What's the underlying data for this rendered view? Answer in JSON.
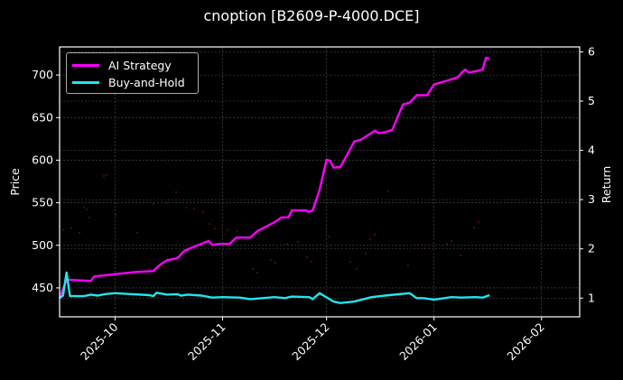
{
  "chart_data": {
    "type": "line",
    "title": "cnoption [B2609-P-4000.DCE]",
    "xlabel": "",
    "ylabel_left": "Price",
    "ylabel_right": "Return",
    "ylim_left": [
      416,
      733
    ],
    "ylim_right": [
      0.62,
      6.1
    ],
    "xlim": [
      "2025-09-15",
      "2026-02-12"
    ],
    "x_ticks": [
      "2025-10",
      "2025-11",
      "2025-12",
      "2026-01",
      "2026-02"
    ],
    "y_ticks_left": [
      450,
      500,
      550,
      600,
      650,
      700
    ],
    "y_ticks_right": [
      1,
      2,
      3,
      4,
      5,
      6
    ],
    "grid": true,
    "legend_position": "upper left",
    "series": [
      {
        "name": "AI Strategy",
        "color": "#ff00ff",
        "axis": "right",
        "x": [
          "2025-09-15",
          "2025-09-17",
          "2025-09-18",
          "2025-09-24",
          "2025-09-25",
          "2025-10-07",
          "2025-10-12",
          "2025-10-14",
          "2025-10-16",
          "2025-10-19",
          "2025-10-21",
          "2025-10-24",
          "2025-10-28",
          "2025-10-29",
          "2025-10-31",
          "2025-11-03",
          "2025-11-05",
          "2025-11-09",
          "2025-11-11",
          "2025-11-16",
          "2025-11-18",
          "2025-11-20",
          "2025-11-21",
          "2025-11-25",
          "2025-11-26",
          "2025-11-27",
          "2025-11-29",
          "2025-12-01",
          "2025-12-02",
          "2025-12-03",
          "2025-12-05",
          "2025-12-09",
          "2025-12-11",
          "2025-12-15",
          "2025-12-16",
          "2025-12-18",
          "2025-12-20",
          "2025-12-23",
          "2025-12-25",
          "2025-12-27",
          "2025-12-30",
          "2026-01-01",
          "2026-01-05",
          "2026-01-08",
          "2026-01-09",
          "2026-01-10",
          "2026-01-11",
          "2026-01-14",
          "2026-01-15",
          "2026-01-16",
          "2026-01-17"
        ],
        "values": [
          1.0,
          1.37,
          1.37,
          1.35,
          1.44,
          1.53,
          1.55,
          1.68,
          1.77,
          1.81,
          1.96,
          2.05,
          2.16,
          2.08,
          2.1,
          2.1,
          2.23,
          2.23,
          2.36,
          2.54,
          2.64,
          2.64,
          2.78,
          2.78,
          2.75,
          2.78,
          3.2,
          3.81,
          3.79,
          3.65,
          3.66,
          4.18,
          4.22,
          4.4,
          4.35,
          4.37,
          4.42,
          4.93,
          4.97,
          5.12,
          5.12,
          5.34,
          5.42,
          5.49,
          5.58,
          5.64,
          5.58,
          5.62,
          5.64,
          5.88,
          5.86
        ]
      },
      {
        "name": "Buy-and-Hold",
        "color": "#22e5ee",
        "axis": "right",
        "x": [
          "2025-09-15",
          "2025-09-16",
          "2025-09-17",
          "2025-09-18",
          "2025-09-22",
          "2025-09-24",
          "2025-09-26",
          "2025-09-28",
          "2025-10-01",
          "2025-10-06",
          "2025-10-11",
          "2025-10-12",
          "2025-10-13",
          "2025-10-16",
          "2025-10-19",
          "2025-10-20",
          "2025-10-22",
          "2025-10-26",
          "2025-10-29",
          "2025-11-01",
          "2025-11-06",
          "2025-11-09",
          "2025-11-11",
          "2025-11-16",
          "2025-11-19",
          "2025-11-21",
          "2025-11-26",
          "2025-11-27",
          "2025-11-29",
          "2025-12-03",
          "2025-12-05",
          "2025-12-09",
          "2025-12-14",
          "2025-12-19",
          "2025-12-25",
          "2025-12-27",
          "2025-12-29",
          "2026-01-01",
          "2026-01-06",
          "2026-01-09",
          "2026-01-13",
          "2026-01-15",
          "2026-01-17"
        ],
        "values": [
          1.0,
          1.05,
          1.52,
          1.04,
          1.04,
          1.07,
          1.05,
          1.08,
          1.1,
          1.08,
          1.06,
          1.04,
          1.11,
          1.07,
          1.08,
          1.05,
          1.07,
          1.05,
          1.01,
          1.02,
          1.01,
          0.98,
          0.99,
          1.02,
          1.0,
          1.03,
          1.02,
          0.98,
          1.1,
          0.93,
          0.9,
          0.93,
          1.02,
          1.06,
          1.1,
          1.0,
          1.0,
          0.97,
          1.02,
          1.01,
          1.02,
          1.01,
          1.06
        ]
      },
      {
        "name": "Price",
        "color": "#ff2222",
        "axis": "left",
        "type": "scatter",
        "note": "faint price markers",
        "values_approx_range": [
          465,
          585
        ]
      }
    ]
  },
  "legend": {
    "items": [
      {
        "label": "AI Strategy",
        "color": "#ff00ff"
      },
      {
        "label": "Buy-and-Hold",
        "color": "#22e5ee"
      }
    ]
  }
}
